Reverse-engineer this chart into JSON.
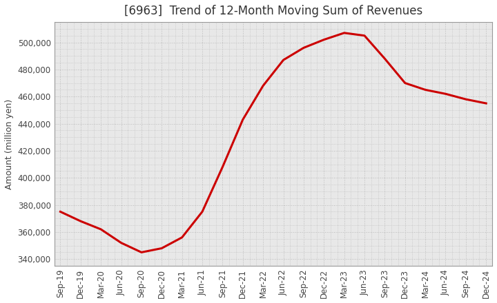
{
  "title": "[6963]  Trend of 12-Month Moving Sum of Revenues",
  "ylabel": "Amount (million yen)",
  "line_color": "#cc0000",
  "background_color": "#ffffff",
  "plot_bg_color": "#e8e8e8",
  "grid_color": "#bbbbbb",
  "x_labels": [
    "Sep-19",
    "Dec-19",
    "Mar-20",
    "Jun-20",
    "Sep-20",
    "Dec-20",
    "Mar-21",
    "Jun-21",
    "Sep-21",
    "Dec-21",
    "Mar-22",
    "Jun-22",
    "Sep-22",
    "Dec-22",
    "Mar-23",
    "Jun-23",
    "Sep-23",
    "Dec-23",
    "Mar-24",
    "Jun-24",
    "Sep-24",
    "Dec-24"
  ],
  "y_values": [
    375000,
    368000,
    362000,
    352000,
    345000,
    348000,
    356000,
    375000,
    408000,
    443000,
    468000,
    487000,
    496000,
    502000,
    507000,
    505000,
    488000,
    470000,
    465000,
    462000,
    458000,
    455000
  ],
  "ylim": [
    335000,
    515000
  ],
  "yticks": [
    340000,
    360000,
    380000,
    400000,
    420000,
    440000,
    460000,
    480000,
    500000
  ],
  "title_fontsize": 12,
  "label_fontsize": 9,
  "tick_fontsize": 8.5,
  "linewidth": 2.2
}
